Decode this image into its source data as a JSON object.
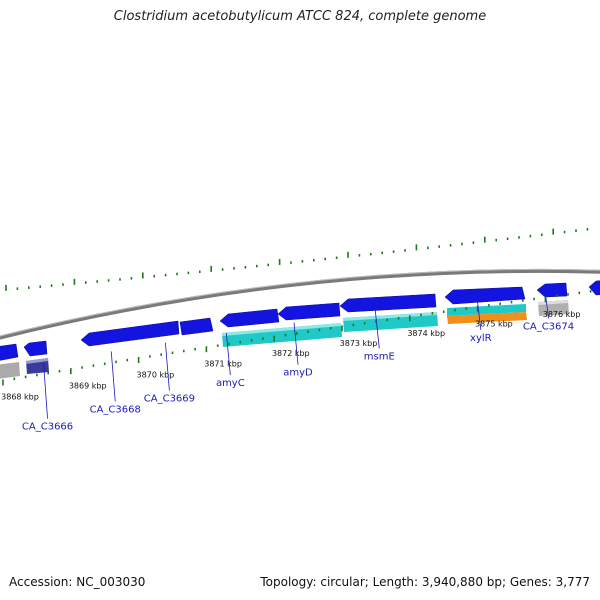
{
  "title": "Clostridium acetobutylicum ATCC 824, complete genome",
  "footer": {
    "accession": "Accession: NC_003030",
    "summary": "Topology: circular; Length: 3,940,880 bp; Genes: 3,777"
  },
  "colors": {
    "cds_forward": "#1111e0",
    "cds_reverse": "#1111e0",
    "rna_gene": "#5a5acc",
    "pseudo": "#aaaaaa",
    "cyan_feature": "#20c8c8",
    "orange_feature": "#f0901a",
    "backbone": "#888888",
    "tick": "#1a7a1a",
    "gene_label": "#1a1ab8"
  },
  "kbp_labels": [
    {
      "label": "3868 kbp",
      "kbp": 3868
    },
    {
      "label": "3869 kbp",
      "kbp": 3869
    },
    {
      "label": "3870 kbp",
      "kbp": 3870
    },
    {
      "label": "3871 kbp",
      "kbp": 3871
    },
    {
      "label": "3872 kbp",
      "kbp": 3872
    },
    {
      "label": "3873 kbp",
      "kbp": 3873
    },
    {
      "label": "3874 kbp",
      "kbp": 3874
    },
    {
      "label": "3875 kbp",
      "kbp": 3875
    },
    {
      "label": "3876 kbp",
      "kbp": 3876
    }
  ],
  "gene_labels": [
    {
      "name": "CA_C3666",
      "kbp": 3868.2
    },
    {
      "name": "CA_C3668",
      "kbp": 3869.2
    },
    {
      "name": "CA_C3669",
      "kbp": 3870.0
    },
    {
      "name": "amyC",
      "kbp": 3870.9
    },
    {
      "name": "amyD",
      "kbp": 3871.9
    },
    {
      "name": "msmE",
      "kbp": 3873.1
    },
    {
      "name": "xylR",
      "kbp": 3874.6
    },
    {
      "name": "CA_C3674",
      "kbp": 3875.6
    }
  ]
}
